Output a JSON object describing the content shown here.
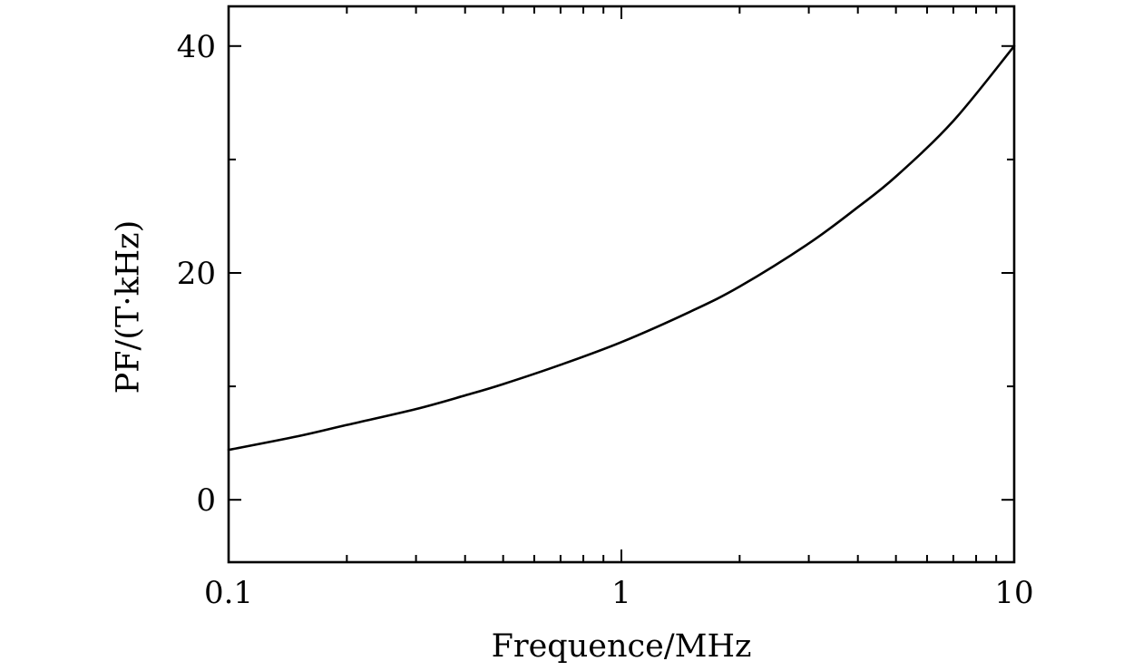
{
  "chart_data": {
    "type": "line",
    "title": "",
    "xlabel": "Frequence/MHz",
    "ylabel": "PF/(T·kHz)",
    "xscale": "log",
    "xlim": [
      0.1,
      10
    ],
    "ylim": [
      -5.5,
      43.5
    ],
    "grid": false,
    "legend": "none",
    "x_ticks": [
      0.1,
      1,
      10
    ],
    "x_tick_labels": [
      "0.1",
      "1",
      "10"
    ],
    "y_ticks": [
      0,
      20,
      40
    ],
    "y_tick_labels": [
      "0",
      "20",
      "40"
    ],
    "y_minor_ticks": [
      10,
      30
    ],
    "series": [
      {
        "color": "#000000",
        "x": [
          0.1,
          0.15,
          0.2,
          0.3,
          0.4,
          0.5,
          0.7,
          1,
          1.5,
          2,
          3,
          4,
          5,
          7,
          10
        ],
        "y": [
          4.4,
          5.6,
          6.6,
          8.0,
          9.2,
          10.2,
          11.9,
          13.9,
          16.6,
          18.8,
          22.6,
          25.8,
          28.5,
          33.4,
          40.0
        ]
      }
    ]
  }
}
